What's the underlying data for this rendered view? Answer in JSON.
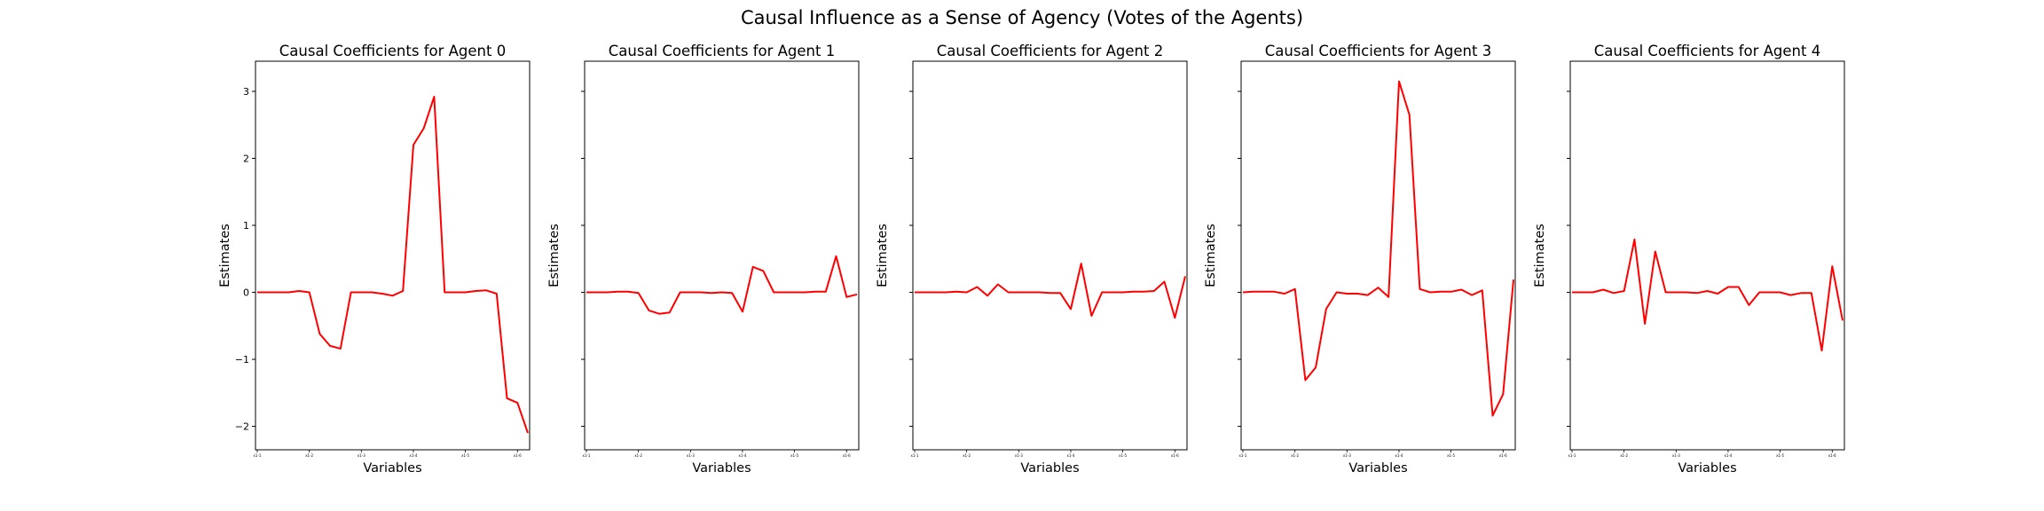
{
  "figure": {
    "title": "Causal Influence as a Sense of Agency (Votes of the Agents)"
  },
  "chart_data": [
    {
      "type": "line",
      "title": "Causal Coefficients for Agent 0",
      "xlabel": "Variables",
      "ylabel": "Estimates",
      "ylim": [
        -2.35,
        3.45
      ],
      "yticks": [
        -2,
        -1,
        0,
        1,
        2,
        3
      ],
      "xticks": [
        "x1-1",
        "x1-2",
        "x1-3",
        "x1-4",
        "x1-5",
        "x1-6"
      ],
      "color": "#ff0000",
      "series": [
        {
          "values": [
            0,
            0,
            0,
            0,
            0.02,
            0,
            -0.62,
            -0.8,
            -0.84,
            0,
            0,
            0,
            -0.02,
            -0.05,
            0.02,
            2.2,
            2.45,
            2.92,
            0,
            0,
            0,
            0.02,
            0.03,
            -0.02,
            -1.58,
            -1.65,
            -2.1
          ]
        }
      ]
    },
    {
      "type": "line",
      "title": "Causal Coefficients for Agent 1",
      "xlabel": "Variables",
      "ylabel": "Estimates",
      "ylim": [
        -2.35,
        3.45
      ],
      "yticks": [
        -2,
        -1,
        0,
        1,
        2,
        3
      ],
      "xticks": [
        "x1-1",
        "x1-2",
        "x1-3",
        "x1-4",
        "x1-5",
        "x1-6"
      ],
      "color": "#ff0000",
      "series": [
        {
          "values": [
            0,
            0,
            0,
            0.01,
            0.01,
            -0.01,
            -0.27,
            -0.32,
            -0.3,
            0,
            0,
            0,
            -0.01,
            0,
            -0.01,
            -0.29,
            0.38,
            0.32,
            0,
            0,
            0,
            0,
            0.01,
            0.01,
            0.54,
            -0.07,
            -0.03
          ]
        }
      ]
    },
    {
      "type": "line",
      "title": "Causal Coefficients for Agent 2",
      "xlabel": "Variables",
      "ylabel": "Estimates",
      "ylim": [
        -2.35,
        3.45
      ],
      "yticks": [
        -2,
        -1,
        0,
        1,
        2,
        3
      ],
      "xticks": [
        "x1-1",
        "x1-2",
        "x1-3",
        "x1-4",
        "x1-5",
        "x1-6"
      ],
      "color": "#ff0000",
      "series": [
        {
          "values": [
            0,
            0,
            0,
            0,
            0.01,
            0,
            0.08,
            -0.05,
            0.12,
            0,
            0,
            0,
            0,
            -0.01,
            -0.01,
            -0.25,
            0.43,
            -0.35,
            0,
            0,
            0,
            0.01,
            0.01,
            0.02,
            0.16,
            -0.38,
            0.24
          ]
        }
      ]
    },
    {
      "type": "line",
      "title": "Causal Coefficients for Agent 3",
      "xlabel": "Variables",
      "ylabel": "Estimates",
      "ylim": [
        -2.35,
        3.45
      ],
      "yticks": [
        -2,
        -1,
        0,
        1,
        2,
        3
      ],
      "xticks": [
        "x1-1",
        "x1-2",
        "x1-3",
        "x1-4",
        "x1-5",
        "x1-6"
      ],
      "color": "#ff0000",
      "series": [
        {
          "values": [
            0,
            0.01,
            0.01,
            0.01,
            -0.02,
            0.05,
            -1.31,
            -1.12,
            -0.25,
            0,
            -0.02,
            -0.02,
            -0.04,
            0.07,
            -0.07,
            3.15,
            2.65,
            0.05,
            0,
            0.01,
            0.01,
            0.04,
            -0.04,
            0.03,
            -1.84,
            -1.52,
            0.19
          ]
        }
      ]
    },
    {
      "type": "line",
      "title": "Causal Coefficients for Agent 4",
      "xlabel": "Variables",
      "ylabel": "Estimates",
      "ylim": [
        -2.35,
        3.45
      ],
      "yticks": [
        -2,
        -1,
        0,
        1,
        2,
        3
      ],
      "xticks": [
        "x1-1",
        "x1-2",
        "x1-3",
        "x1-4",
        "x1-5",
        "x1-6"
      ],
      "color": "#ff0000",
      "series": [
        {
          "values": [
            0,
            0,
            0,
            0.04,
            -0.01,
            0.02,
            0.79,
            -0.47,
            0.61,
            0,
            0,
            0,
            -0.01,
            0.02,
            -0.02,
            0.08,
            0.08,
            -0.19,
            0,
            0,
            0,
            -0.04,
            -0.01,
            -0.01,
            -0.87,
            0.39,
            -0.42
          ]
        }
      ]
    }
  ]
}
